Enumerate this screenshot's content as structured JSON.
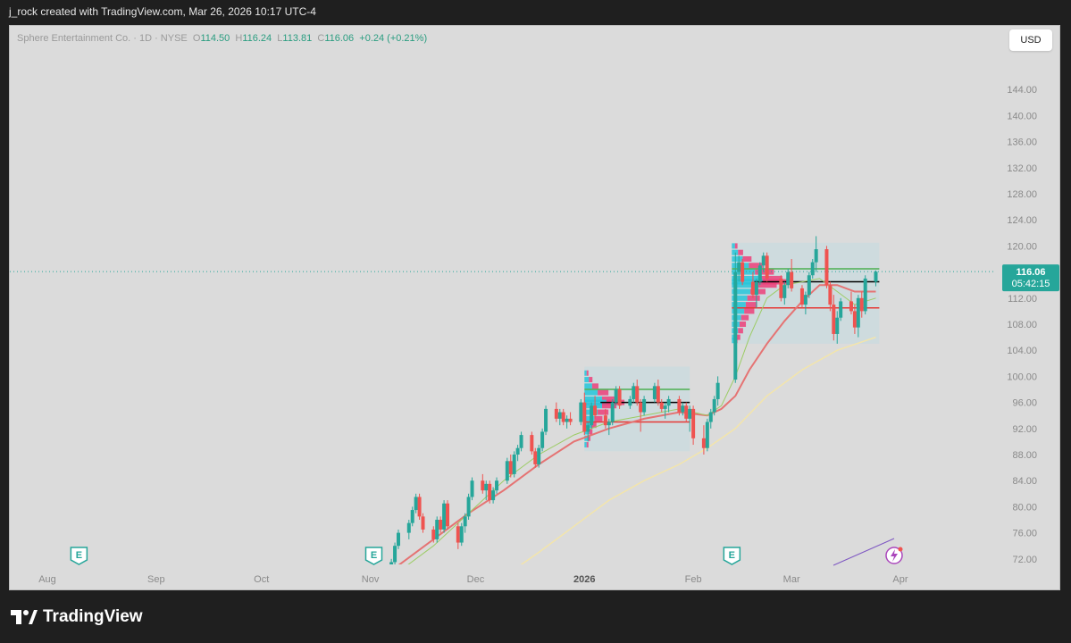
{
  "caption": "j_rock created with TradingView.com, Mar 26, 2026 10:17 UTC-4",
  "legend": {
    "symbol": "Sphere Entertainment Co. · 1D · NYSE",
    "o_label": "O",
    "o": "114.50",
    "h_label": "H",
    "h": "116.24",
    "l_label": "L",
    "l": "113.81",
    "c_label": "C",
    "c": "116.06",
    "change": "+0.24 (+0.21%)"
  },
  "currency": "USD",
  "price_badge": {
    "price": "116.06",
    "countdown": "05:42:15"
  },
  "brand": "TradingView",
  "colors": {
    "up": "#26a69a",
    "down": "#ef5350",
    "ema_fast": "#9ccc65",
    "ema_mid": "#e57373",
    "ema_slow": "#f3e5ab",
    "profile_up": "#26c6da",
    "profile_down": "#ec407a",
    "poc": "#000000",
    "vah": "#4caf50",
    "val": "#e53935",
    "badge": "#26a69a",
    "earnings": "#26a69a",
    "dividend_icon": "#ab47bc"
  },
  "chart_data": {
    "type": "candlestick",
    "ylim": [
      68,
      148
    ],
    "y_ticks": [
      "144.00",
      "140.00",
      "136.00",
      "132.00",
      "128.00",
      "124.00",
      "120.00",
      "116.00",
      "112.00",
      "108.00",
      "104.00",
      "100.00",
      "96.00",
      "92.00",
      "88.00",
      "84.00",
      "80.00",
      "76.00",
      "72.00"
    ],
    "x_ticks": [
      {
        "label": "Aug",
        "day": 0
      },
      {
        "label": "Sep",
        "day": 31
      },
      {
        "label": "Oct",
        "day": 61
      },
      {
        "label": "Nov",
        "day": 92
      },
      {
        "label": "Dec",
        "day": 122
      },
      {
        "label": "2026",
        "day": 153
      },
      {
        "label": "Feb",
        "day": 184
      },
      {
        "label": "Mar",
        "day": 212
      },
      {
        "label": "Apr",
        "day": 243
      }
    ],
    "ohlc": [
      {
        "d": 90,
        "o": 68.5,
        "h": 70.2,
        "l": 68.0,
        "c": 69.5
      },
      {
        "d": 92,
        "o": 69.0,
        "h": 70.0,
        "l": 68.2,
        "c": 68.6
      },
      {
        "d": 96,
        "o": 69.0,
        "h": 70.5,
        "l": 68.5,
        "c": 70.0
      },
      {
        "d": 98,
        "o": 70.5,
        "h": 72.0,
        "l": 70.0,
        "c": 71.5
      },
      {
        "d": 99,
        "o": 71.5,
        "h": 74.5,
        "l": 71.0,
        "c": 74.0
      },
      {
        "d": 100,
        "o": 74.0,
        "h": 76.5,
        "l": 73.5,
        "c": 76.0
      },
      {
        "d": 103,
        "o": 76.0,
        "h": 78.0,
        "l": 75.0,
        "c": 77.5
      },
      {
        "d": 104,
        "o": 77.5,
        "h": 80.0,
        "l": 77.0,
        "c": 79.5
      },
      {
        "d": 105,
        "o": 79.5,
        "h": 82.0,
        "l": 79.0,
        "c": 81.5
      },
      {
        "d": 106,
        "o": 81.5,
        "h": 82.0,
        "l": 78.0,
        "c": 78.5
      },
      {
        "d": 107,
        "o": 78.5,
        "h": 79.0,
        "l": 76.0,
        "c": 76.5
      },
      {
        "d": 110,
        "o": 76.5,
        "h": 77.0,
        "l": 74.5,
        "c": 75.0
      },
      {
        "d": 111,
        "o": 75.0,
        "h": 78.5,
        "l": 74.5,
        "c": 78.0
      },
      {
        "d": 112,
        "o": 78.0,
        "h": 78.5,
        "l": 76.0,
        "c": 76.5
      },
      {
        "d": 113,
        "o": 76.5,
        "h": 81.0,
        "l": 76.0,
        "c": 80.5
      },
      {
        "d": 114,
        "o": 80.5,
        "h": 81.0,
        "l": 76.5,
        "c": 77.0
      },
      {
        "d": 117,
        "o": 77.0,
        "h": 77.5,
        "l": 73.5,
        "c": 74.5
      },
      {
        "d": 118,
        "o": 74.5,
        "h": 77.5,
        "l": 74.0,
        "c": 77.0
      },
      {
        "d": 119,
        "o": 77.0,
        "h": 79.0,
        "l": 76.0,
        "c": 78.5
      },
      {
        "d": 120,
        "o": 78.5,
        "h": 82.0,
        "l": 78.0,
        "c": 81.5
      },
      {
        "d": 121,
        "o": 81.5,
        "h": 84.5,
        "l": 81.0,
        "c": 84.0
      },
      {
        "d": 124,
        "o": 84.0,
        "h": 85.0,
        "l": 82.0,
        "c": 82.5
      },
      {
        "d": 125,
        "o": 82.5,
        "h": 84.0,
        "l": 81.0,
        "c": 83.5
      },
      {
        "d": 126,
        "o": 83.5,
        "h": 84.0,
        "l": 80.5,
        "c": 81.0
      },
      {
        "d": 127,
        "o": 81.0,
        "h": 83.0,
        "l": 80.5,
        "c": 82.5
      },
      {
        "d": 128,
        "o": 82.5,
        "h": 84.5,
        "l": 82.0,
        "c": 84.0
      },
      {
        "d": 131,
        "o": 84.0,
        "h": 87.5,
        "l": 83.5,
        "c": 87.0
      },
      {
        "d": 132,
        "o": 87.0,
        "h": 88.0,
        "l": 84.5,
        "c": 85.0
      },
      {
        "d": 133,
        "o": 85.0,
        "h": 88.5,
        "l": 84.5,
        "c": 88.0
      },
      {
        "d": 134,
        "o": 88.0,
        "h": 89.5,
        "l": 87.0,
        "c": 89.0
      },
      {
        "d": 135,
        "o": 89.0,
        "h": 91.5,
        "l": 88.5,
        "c": 91.0
      },
      {
        "d": 138,
        "o": 91.0,
        "h": 91.5,
        "l": 88.0,
        "c": 88.5
      },
      {
        "d": 139,
        "o": 88.5,
        "h": 89.0,
        "l": 86.0,
        "c": 86.5
      },
      {
        "d": 140,
        "o": 86.5,
        "h": 89.5,
        "l": 86.0,
        "c": 89.0
      },
      {
        "d": 141,
        "o": 89.0,
        "h": 92.0,
        "l": 88.5,
        "c": 91.5
      },
      {
        "d": 142,
        "o": 91.5,
        "h": 95.5,
        "l": 91.0,
        "c": 95.0
      },
      {
        "d": 145,
        "o": 95.0,
        "h": 96.0,
        "l": 93.0,
        "c": 93.5
      },
      {
        "d": 146,
        "o": 93.5,
        "h": 95.0,
        "l": 92.5,
        "c": 94.5
      },
      {
        "d": 147,
        "o": 94.5,
        "h": 95.0,
        "l": 92.5,
        "c": 93.0
      },
      {
        "d": 148,
        "o": 93.0,
        "h": 94.0,
        "l": 92.0,
        "c": 93.5
      },
      {
        "d": 149,
        "o": 93.5,
        "h": 94.5,
        "l": 92.5,
        "c": 93.0
      },
      {
        "d": 152,
        "o": 93.0,
        "h": 96.5,
        "l": 92.5,
        "c": 96.0
      },
      {
        "d": 153,
        "o": 96.0,
        "h": 97.5,
        "l": 91.0,
        "c": 91.5
      },
      {
        "d": 154,
        "o": 91.5,
        "h": 93.0,
        "l": 90.0,
        "c": 92.5
      },
      {
        "d": 155,
        "o": 92.5,
        "h": 96.0,
        "l": 92.0,
        "c": 95.5
      },
      {
        "d": 156,
        "o": 95.5,
        "h": 97.0,
        "l": 93.5,
        "c": 94.0
      },
      {
        "d": 159,
        "o": 94.0,
        "h": 95.0,
        "l": 92.0,
        "c": 92.5
      },
      {
        "d": 160,
        "o": 92.5,
        "h": 93.5,
        "l": 91.0,
        "c": 93.0
      },
      {
        "d": 161,
        "o": 93.0,
        "h": 96.5,
        "l": 92.5,
        "c": 96.0
      },
      {
        "d": 162,
        "o": 96.0,
        "h": 98.5,
        "l": 95.5,
        "c": 98.0
      },
      {
        "d": 163,
        "o": 98.0,
        "h": 98.5,
        "l": 95.0,
        "c": 95.5
      },
      {
        "d": 166,
        "o": 95.5,
        "h": 97.0,
        "l": 95.0,
        "c": 96.5
      },
      {
        "d": 167,
        "o": 96.5,
        "h": 99.0,
        "l": 96.0,
        "c": 98.5
      },
      {
        "d": 168,
        "o": 98.5,
        "h": 99.5,
        "l": 95.5,
        "c": 96.0
      },
      {
        "d": 169,
        "o": 96.0,
        "h": 96.5,
        "l": 91.5,
        "c": 94.5
      },
      {
        "d": 170,
        "o": 94.5,
        "h": 97.0,
        "l": 94.0,
        "c": 96.5
      },
      {
        "d": 173,
        "o": 96.5,
        "h": 99.0,
        "l": 96.0,
        "c": 98.5
      },
      {
        "d": 174,
        "o": 98.5,
        "h": 99.5,
        "l": 95.5,
        "c": 96.0
      },
      {
        "d": 175,
        "o": 96.0,
        "h": 96.5,
        "l": 94.5,
        "c": 95.0
      },
      {
        "d": 176,
        "o": 95.0,
        "h": 96.0,
        "l": 93.5,
        "c": 95.5
      },
      {
        "d": 177,
        "o": 95.5,
        "h": 97.0,
        "l": 94.5,
        "c": 96.5
      },
      {
        "d": 180,
        "o": 96.5,
        "h": 97.0,
        "l": 94.0,
        "c": 94.5
      },
      {
        "d": 181,
        "o": 94.5,
        "h": 96.0,
        "l": 94.0,
        "c": 95.5
      },
      {
        "d": 182,
        "o": 95.5,
        "h": 96.0,
        "l": 93.0,
        "c": 93.5
      },
      {
        "d": 183,
        "o": 93.5,
        "h": 95.5,
        "l": 91.5,
        "c": 95.0
      },
      {
        "d": 184,
        "o": 95.0,
        "h": 95.5,
        "l": 89.5,
        "c": 90.5
      },
      {
        "d": 187,
        "o": 90.5,
        "h": 92.5,
        "l": 88.0,
        "c": 89.0
      },
      {
        "d": 188,
        "o": 89.0,
        "h": 93.5,
        "l": 88.5,
        "c": 93.0
      },
      {
        "d": 189,
        "o": 93.0,
        "h": 95.0,
        "l": 92.0,
        "c": 94.5
      },
      {
        "d": 190,
        "o": 94.5,
        "h": 97.0,
        "l": 94.0,
        "c": 96.5
      },
      {
        "d": 191,
        "o": 96.5,
        "h": 100.0,
        "l": 95.5,
        "c": 99.0
      },
      {
        "d": 196,
        "o": 99.5,
        "h": 119.0,
        "l": 99.0,
        "c": 116.0
      },
      {
        "d": 197,
        "o": 116.0,
        "h": 118.5,
        "l": 114.5,
        "c": 117.5
      },
      {
        "d": 198,
        "o": 117.5,
        "h": 118.0,
        "l": 114.0,
        "c": 114.5
      },
      {
        "d": 201,
        "o": 114.5,
        "h": 116.0,
        "l": 112.0,
        "c": 112.5
      },
      {
        "d": 202,
        "o": 112.5,
        "h": 115.0,
        "l": 110.5,
        "c": 114.5
      },
      {
        "d": 203,
        "o": 114.5,
        "h": 117.5,
        "l": 114.0,
        "c": 117.0
      },
      {
        "d": 204,
        "o": 117.0,
        "h": 119.0,
        "l": 116.0,
        "c": 118.5
      },
      {
        "d": 205,
        "o": 118.5,
        "h": 119.0,
        "l": 114.5,
        "c": 115.0
      },
      {
        "d": 209,
        "o": 115.0,
        "h": 115.5,
        "l": 111.5,
        "c": 112.0
      },
      {
        "d": 210,
        "o": 112.0,
        "h": 114.5,
        "l": 111.0,
        "c": 114.0
      },
      {
        "d": 211,
        "o": 114.0,
        "h": 116.5,
        "l": 113.5,
        "c": 116.0
      },
      {
        "d": 212,
        "o": 116.0,
        "h": 118.0,
        "l": 113.0,
        "c": 113.5
      },
      {
        "d": 215,
        "o": 113.5,
        "h": 114.0,
        "l": 110.5,
        "c": 111.0
      },
      {
        "d": 216,
        "o": 111.0,
        "h": 113.0,
        "l": 109.5,
        "c": 112.5
      },
      {
        "d": 217,
        "o": 112.5,
        "h": 116.0,
        "l": 112.0,
        "c": 115.5
      },
      {
        "d": 218,
        "o": 115.5,
        "h": 118.0,
        "l": 115.0,
        "c": 117.5
      },
      {
        "d": 219,
        "o": 117.5,
        "h": 121.5,
        "l": 116.0,
        "c": 119.5
      },
      {
        "d": 222,
        "o": 119.5,
        "h": 120.0,
        "l": 113.5,
        "c": 114.0
      },
      {
        "d": 223,
        "o": 114.0,
        "h": 114.5,
        "l": 110.0,
        "c": 111.0
      },
      {
        "d": 224,
        "o": 111.0,
        "h": 112.5,
        "l": 105.5,
        "c": 106.5
      },
      {
        "d": 225,
        "o": 106.5,
        "h": 110.0,
        "l": 105.0,
        "c": 109.0
      },
      {
        "d": 226,
        "o": 109.0,
        "h": 112.0,
        "l": 108.5,
        "c": 111.5
      },
      {
        "d": 229,
        "o": 111.5,
        "h": 113.0,
        "l": 109.5,
        "c": 110.0
      },
      {
        "d": 230,
        "o": 110.0,
        "h": 111.0,
        "l": 106.5,
        "c": 107.5
      },
      {
        "d": 231,
        "o": 107.5,
        "h": 112.5,
        "l": 106.0,
        "c": 112.0
      },
      {
        "d": 232,
        "o": 112.0,
        "h": 113.0,
        "l": 109.0,
        "c": 110.0
      },
      {
        "d": 233,
        "o": 110.0,
        "h": 115.5,
        "l": 109.5,
        "c": 115.0
      },
      {
        "d": 236,
        "o": 114.5,
        "h": 116.24,
        "l": 113.81,
        "c": 116.06
      }
    ],
    "ema_fast": [
      [
        100,
        70
      ],
      [
        110,
        74
      ],
      [
        120,
        79
      ],
      [
        130,
        84
      ],
      [
        140,
        88
      ],
      [
        150,
        91
      ],
      [
        160,
        93
      ],
      [
        170,
        94
      ],
      [
        180,
        95
      ],
      [
        188,
        94
      ],
      [
        192,
        95.5
      ],
      [
        196,
        100
      ],
      [
        200,
        106
      ],
      [
        205,
        112
      ],
      [
        210,
        114
      ],
      [
        215,
        114.5
      ],
      [
        220,
        115
      ],
      [
        225,
        113
      ],
      [
        230,
        111
      ],
      [
        236,
        112
      ]
    ],
    "ema_mid": [
      [
        92,
        68
      ],
      [
        100,
        71
      ],
      [
        110,
        75
      ],
      [
        120,
        79
      ],
      [
        130,
        82.5
      ],
      [
        140,
        86.5
      ],
      [
        150,
        90
      ],
      [
        160,
        92
      ],
      [
        170,
        93.5
      ],
      [
        180,
        94.5
      ],
      [
        188,
        94
      ],
      [
        192,
        95
      ],
      [
        196,
        97
      ],
      [
        200,
        101
      ],
      [
        205,
        105
      ],
      [
        210,
        108.5
      ],
      [
        215,
        111.5
      ],
      [
        220,
        114
      ],
      [
        225,
        114
      ],
      [
        230,
        113
      ],
      [
        236,
        113
      ]
    ],
    "ema_slow": [
      [
        128,
        68.5
      ],
      [
        140,
        73
      ],
      [
        150,
        77
      ],
      [
        160,
        81
      ],
      [
        170,
        84
      ],
      [
        180,
        86.5
      ],
      [
        188,
        89
      ],
      [
        196,
        92
      ],
      [
        205,
        97
      ],
      [
        215,
        101
      ],
      [
        225,
        104
      ],
      [
        236,
        106
      ]
    ],
    "volume_profiles": [
      {
        "start": 153,
        "end": 183,
        "top": 101.5,
        "bottom": 88.5,
        "poc": 96.0,
        "vah": 98.0,
        "val": 93.0,
        "bins": [
          [
            100.5,
            0.1
          ],
          [
            99.5,
            0.2
          ],
          [
            98.5,
            0.35
          ],
          [
            97.5,
            0.6
          ],
          [
            96.5,
            0.8
          ],
          [
            96.0,
            1.0
          ],
          [
            95.5,
            0.8
          ],
          [
            94.5,
            0.6
          ],
          [
            93.5,
            0.45
          ],
          [
            92.5,
            0.3
          ],
          [
            91.5,
            0.2
          ],
          [
            90.5,
            0.15
          ],
          [
            89.5,
            0.1
          ]
        ]
      },
      {
        "start": 195,
        "end": 237,
        "top": 120.5,
        "bottom": 105.0,
        "poc": 114.5,
        "vah": 116.5,
        "val": 110.5,
        "bins": [
          [
            120,
            0.1
          ],
          [
            119,
            0.2
          ],
          [
            118,
            0.35
          ],
          [
            117,
            0.55
          ],
          [
            116,
            0.75
          ],
          [
            115,
            0.9
          ],
          [
            114.5,
            1.0
          ],
          [
            114,
            0.8
          ],
          [
            113,
            0.6
          ],
          [
            112,
            0.5
          ],
          [
            111,
            0.45
          ],
          [
            110,
            0.4
          ],
          [
            109,
            0.3
          ],
          [
            108,
            0.25
          ],
          [
            107,
            0.2
          ],
          [
            106,
            0.15
          ],
          [
            105.5,
            0.1
          ]
        ]
      }
    ],
    "current_price": 116.06,
    "markers": [
      {
        "type": "earnings",
        "label": "E",
        "day": 9
      },
      {
        "type": "earnings",
        "label": "E",
        "day": 93
      },
      {
        "type": "earnings",
        "label": "E",
        "day": 195
      }
    ]
  }
}
